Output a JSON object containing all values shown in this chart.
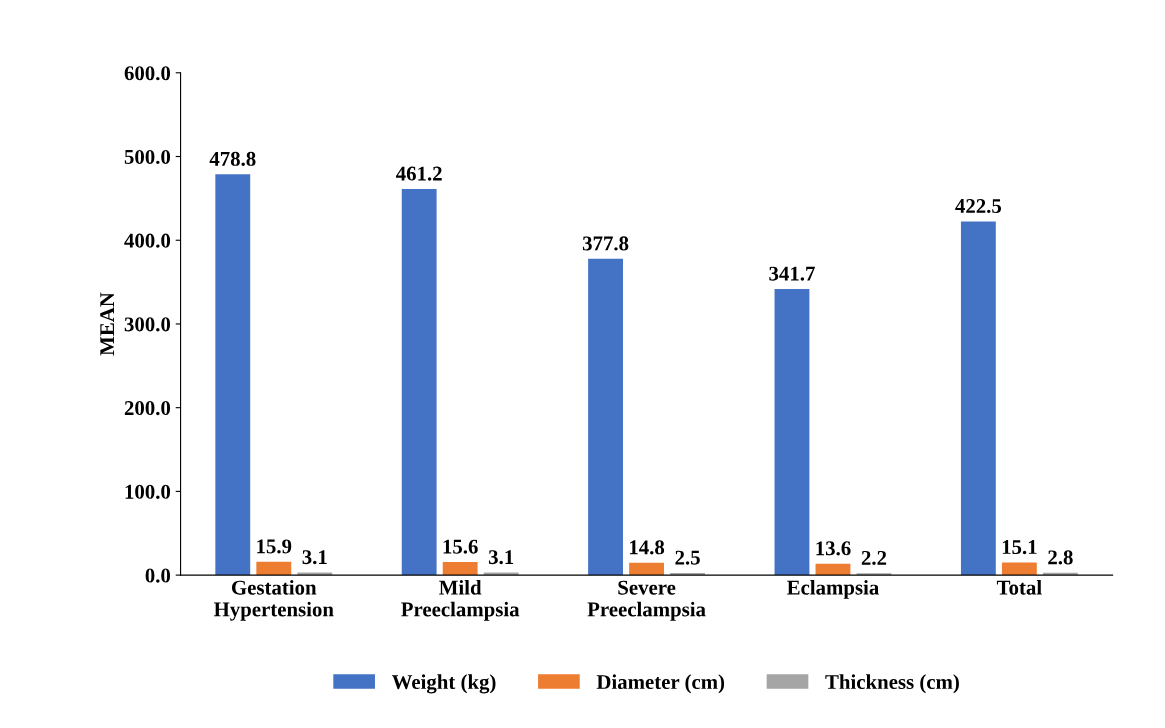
{
  "chart_data": {
    "type": "bar",
    "ylabel": "MEAN",
    "categories": [
      "Gestation\nHypertension",
      "Mild\nPreeclampsia",
      "Severe\nPreeclampsia",
      "Eclampsia",
      "Total"
    ],
    "series": [
      {
        "name": "Weight (kg)",
        "color": "#4472c4",
        "values": [
          478.8,
          461.2,
          377.8,
          341.7,
          422.5
        ]
      },
      {
        "name": "Diameter (cm)",
        "color": "#ed7d31",
        "values": [
          15.9,
          15.6,
          14.8,
          13.6,
          15.1
        ]
      },
      {
        "name": "Thickness (cm)",
        "color": "#a5a5a5",
        "values": [
          3.1,
          3.1,
          2.5,
          2.2,
          2.8
        ]
      }
    ],
    "ylim": [
      0,
      600
    ],
    "yticks": [
      {
        "value": 0,
        "label": "0.0"
      },
      {
        "value": 100,
        "label": "100.0"
      },
      {
        "value": 200,
        "label": "200.0"
      },
      {
        "value": 300,
        "label": "300.0"
      },
      {
        "value": 400,
        "label": "400.0"
      },
      {
        "value": 500,
        "label": "500.0"
      },
      {
        "value": 600,
        "label": "600.0"
      }
    ],
    "data_labels": true,
    "grid": false,
    "legend": "bottom"
  }
}
